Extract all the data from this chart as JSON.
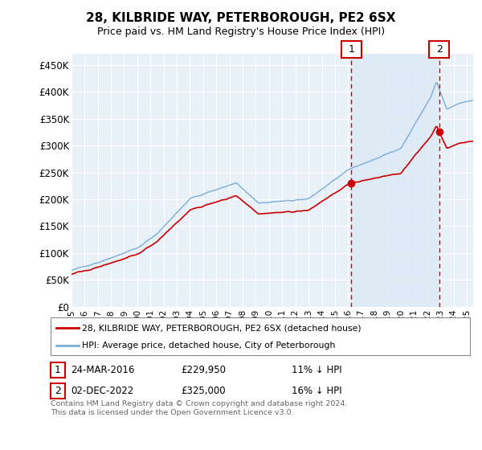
{
  "title": "28, KILBRIDE WAY, PETERBOROUGH, PE2 6SX",
  "subtitle": "Price paid vs. HM Land Registry's House Price Index (HPI)",
  "ylabel_ticks": [
    "£0",
    "£50K",
    "£100K",
    "£150K",
    "£200K",
    "£250K",
    "£300K",
    "£350K",
    "£400K",
    "£450K"
  ],
  "ytick_values": [
    0,
    50000,
    100000,
    150000,
    200000,
    250000,
    300000,
    350000,
    400000,
    450000
  ],
  "ylim": [
    0,
    470000
  ],
  "xlim_start": 1995.0,
  "xlim_end": 2025.5,
  "annotation1": {
    "label": "1",
    "x": 2016.25,
    "price": 229950,
    "text_date": "24-MAR-2016",
    "text_price": "£229,950",
    "text_diff": "11% ↓ HPI"
  },
  "annotation2": {
    "label": "2",
    "x": 2022.92,
    "price": 325000,
    "text_date": "02-DEC-2022",
    "text_price": "£325,000",
    "text_diff": "16% ↓ HPI"
  },
  "legend_line1": "28, KILBRIDE WAY, PETERBOROUGH, PE2 6SX (detached house)",
  "legend_line2": "HPI: Average price, detached house, City of Peterborough",
  "footer": "Contains HM Land Registry data © Crown copyright and database right 2024.\nThis data is licensed under the Open Government Licence v3.0.",
  "line_color_red": "#cc0000",
  "line_color_blue": "#7aaed6",
  "fill_color": "#ddeaf5",
  "bg_color": "#e8f0f8",
  "grid_color": "#ffffff",
  "annotation_box_color": "#cc0000",
  "chart_bg": "#dce8f0"
}
